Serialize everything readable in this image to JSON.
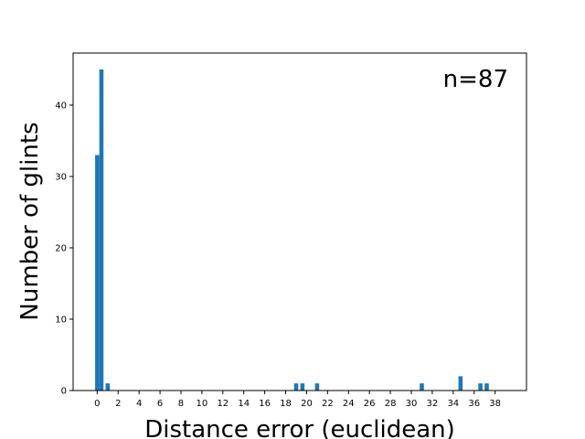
{
  "chart_data": {
    "type": "bar",
    "xlabel": "Distance error (euclidean)",
    "ylabel": "Number of glints",
    "annotation": "n=87",
    "xlim": [
      -2.3,
      41.0
    ],
    "ylim": [
      0,
      47.3
    ],
    "xticks": [
      0,
      2,
      4,
      6,
      8,
      10,
      12,
      14,
      16,
      18,
      20,
      22,
      24,
      26,
      28,
      30,
      32,
      34,
      36,
      38
    ],
    "yticks": [
      0,
      10,
      20,
      30,
      40
    ],
    "bar_width": 0.4,
    "bar_color": "#1f77b4",
    "x": [
      0.0,
      0.4,
      1.0,
      19.0,
      19.6,
      21.0,
      31.0,
      34.7,
      36.6,
      37.2
    ],
    "values": [
      33,
      45,
      1,
      1,
      1,
      1,
      1,
      2,
      1,
      1
    ]
  }
}
